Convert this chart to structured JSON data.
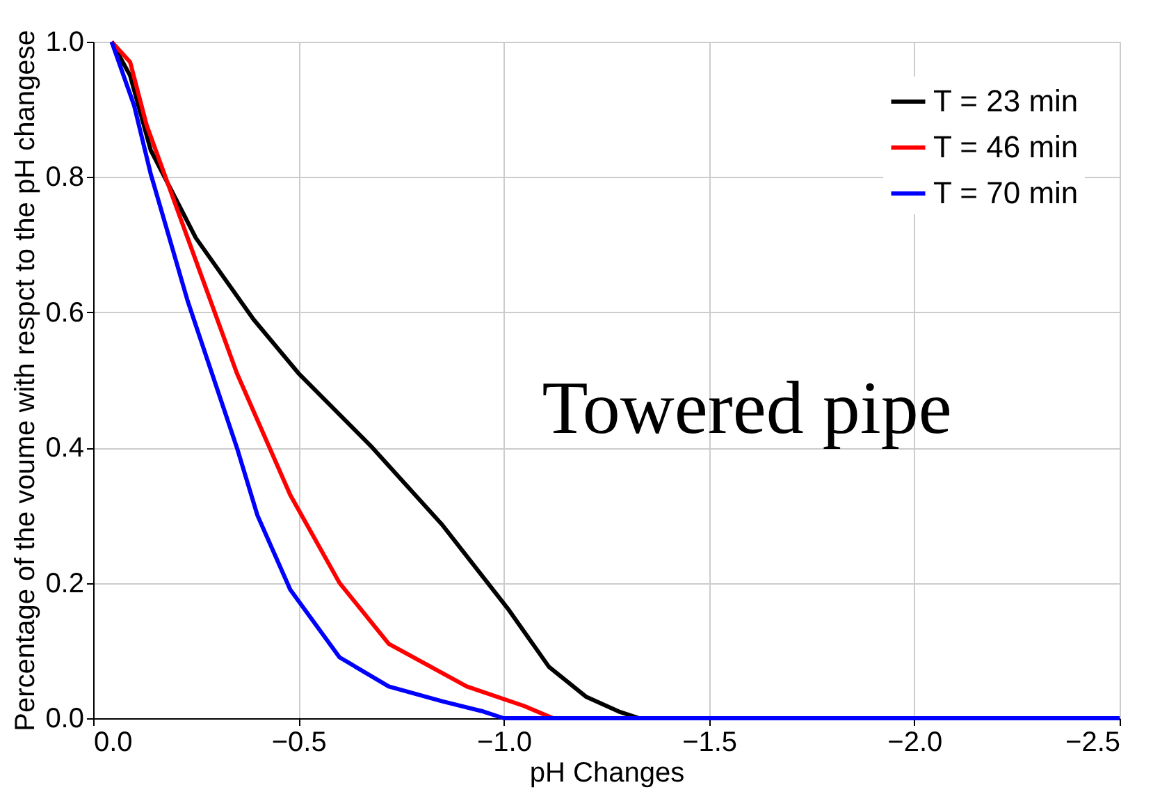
{
  "chart_data": {
    "type": "line",
    "xlabel": "pH Changes",
    "ylabel": "Percentage of the voume with respct to the pH changese",
    "xlim": [
      0,
      -2.5
    ],
    "ylim": [
      0,
      1.0
    ],
    "xticks": [
      {
        "value": 0,
        "label": "0.0"
      },
      {
        "value": -0.5,
        "label": "−0.5"
      },
      {
        "value": -1.0,
        "label": "−1.0"
      },
      {
        "value": -1.5,
        "label": "−1.5"
      },
      {
        "value": -2.0,
        "label": "−2.0"
      },
      {
        "value": -2.5,
        "label": "−2.5"
      }
    ],
    "yticks": [
      {
        "value": 0,
        "label": "0.0"
      },
      0.2,
      0.4,
      0.6,
      0.8,
      {
        "value": 1,
        "label": "1.0"
      }
    ],
    "grid": true,
    "legend": "top right",
    "line_style": "solid",
    "marker": "none",
    "annotations": [
      "Towered pipe"
    ],
    "series": [
      {
        "name": "T = 23 min",
        "color": "#000000",
        "x": [
          -0.045,
          -0.09,
          -0.14,
          -0.25,
          -0.39,
          -0.5,
          -0.68,
          -0.85,
          -1.01,
          -1.11,
          -1.2,
          -1.28,
          -1.33
        ],
        "values": [
          1.0,
          0.95,
          0.84,
          0.71,
          0.59,
          0.51,
          0.4,
          0.286,
          0.162,
          0.076,
          0.032,
          0.01,
          0
        ]
      },
      {
        "name": "T = 46 min",
        "color": "#ff0000",
        "x": [
          -0.045,
          -0.09,
          -0.13,
          -0.23,
          -0.35,
          -0.48,
          -0.6,
          -0.72,
          -0.91,
          -1.05,
          -1.12
        ],
        "values": [
          1.0,
          0.97,
          0.877,
          0.71,
          0.51,
          0.33,
          0.2,
          0.11,
          0.047,
          0.018,
          0
        ]
      },
      {
        "name": "T = 70 min",
        "color": "#0000ff",
        "x": [
          -0.045,
          -0.1,
          -0.14,
          -0.23,
          -0.35,
          -0.4,
          -0.48,
          -0.6,
          -0.72,
          -0.85,
          -0.95,
          -1.0,
          -1.5,
          -2.0,
          -2.5
        ],
        "values": [
          1.0,
          0.905,
          0.805,
          0.617,
          0.4,
          0.3,
          0.19,
          0.09,
          0.047,
          0.025,
          0.01,
          0,
          0,
          0,
          0
        ]
      }
    ]
  }
}
